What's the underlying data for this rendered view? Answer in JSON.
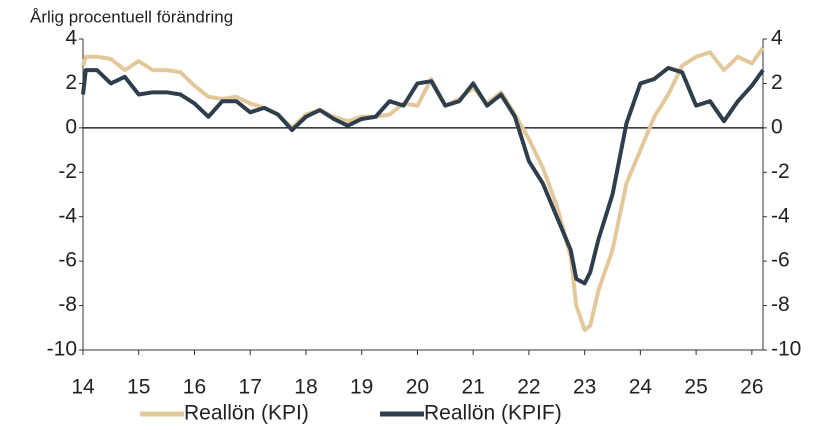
{
  "chart_data": {
    "type": "line",
    "subtitle": "Årlig procentuell förändring",
    "x": [
      14.0,
      14.05,
      14.25,
      14.5,
      14.75,
      15.0,
      15.25,
      15.5,
      15.75,
      16.0,
      16.25,
      16.5,
      16.75,
      17.0,
      17.25,
      17.5,
      17.75,
      18.0,
      18.25,
      18.5,
      18.75,
      19.0,
      19.25,
      19.5,
      19.75,
      20.0,
      20.25,
      20.5,
      20.75,
      21.0,
      21.25,
      21.5,
      21.75,
      22.0,
      22.25,
      22.5,
      22.75,
      22.85,
      23.0,
      23.1,
      23.25,
      23.5,
      23.75,
      24.0,
      24.25,
      24.5,
      24.75,
      25.0,
      25.25,
      25.5,
      25.75,
      26.0,
      26.2
    ],
    "series": [
      {
        "name": "Reallön (KPI)",
        "color": "#e3c89b",
        "values": [
          2.8,
          3.2,
          3.2,
          3.1,
          2.6,
          3.0,
          2.6,
          2.6,
          2.5,
          1.9,
          1.4,
          1.3,
          1.4,
          1.1,
          0.9,
          0.6,
          0.0,
          0.6,
          0.8,
          0.5,
          0.3,
          0.5,
          0.5,
          0.6,
          1.1,
          1.0,
          2.2,
          1.0,
          1.3,
          1.8,
          1.1,
          1.6,
          0.6,
          -0.5,
          -1.8,
          -3.5,
          -5.8,
          -8.0,
          -9.1,
          -8.9,
          -7.3,
          -5.5,
          -2.5,
          -1.0,
          0.5,
          1.5,
          2.8,
          3.2,
          3.4,
          2.6,
          3.2,
          2.9,
          3.6
        ]
      },
      {
        "name": "Reallön (KPIF)",
        "color": "#2f3e4c",
        "values": [
          1.5,
          2.6,
          2.6,
          2.0,
          2.3,
          1.5,
          1.6,
          1.6,
          1.5,
          1.1,
          0.5,
          1.2,
          1.2,
          0.7,
          0.9,
          0.6,
          -0.1,
          0.5,
          0.8,
          0.4,
          0.1,
          0.4,
          0.5,
          1.2,
          1.0,
          2.0,
          2.1,
          1.0,
          1.2,
          2.0,
          1.0,
          1.5,
          0.5,
          -1.5,
          -2.5,
          -4.0,
          -5.5,
          -6.8,
          -7.0,
          -6.5,
          -5.0,
          -3.0,
          0.2,
          2.0,
          2.2,
          2.7,
          2.5,
          1.0,
          1.2,
          0.3,
          1.2,
          1.9,
          2.6
        ]
      }
    ],
    "xlim": [
      14,
      26.2
    ],
    "xticks": [
      14,
      15,
      16,
      17,
      18,
      19,
      20,
      21,
      22,
      23,
      24,
      25,
      26
    ],
    "ylim": [
      -10,
      4
    ],
    "yticks": [
      4,
      2,
      0,
      -2,
      -4,
      -6,
      -8,
      -10
    ],
    "legend": "bottom"
  }
}
